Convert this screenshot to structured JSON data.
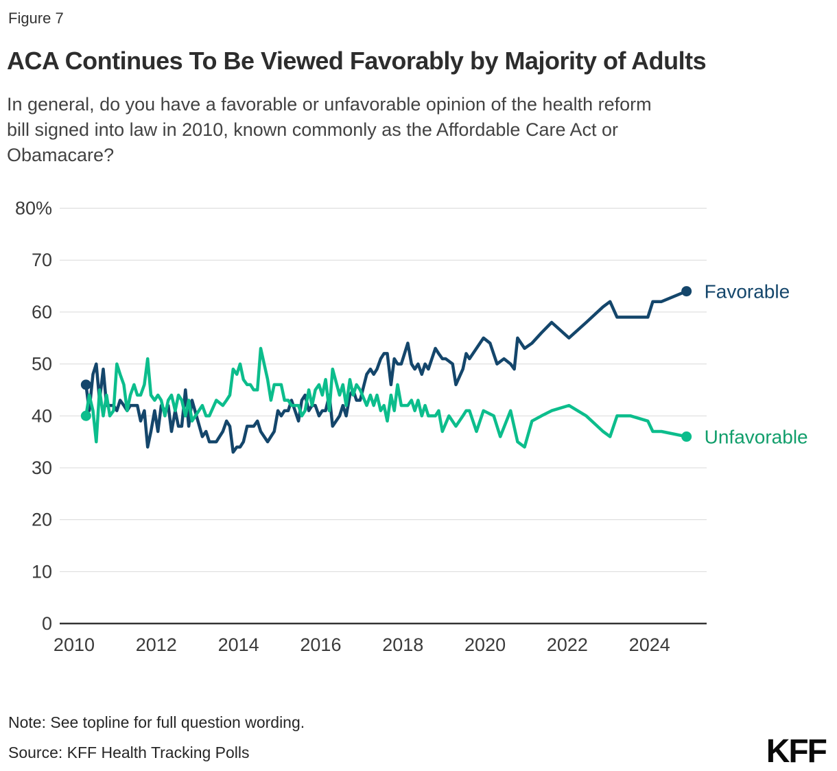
{
  "header": {
    "figure_label": "Figure 7",
    "title": "ACA Continues To Be Viewed Favorably by Majority of Adults",
    "subtitle_lines": [
      "In general, do you have a favorable or unfavorable opinion of the health reform",
      "bill signed into law in 2010, known commonly as the Affordable Care Act or",
      "Obamacare?"
    ]
  },
  "footer": {
    "note": "Note: See topline for full question wording.",
    "source": "Source: KFF Health Tracking Polls",
    "logo": "KFF"
  },
  "style": {
    "grid_color": "#d9d9d9",
    "axis_color": "#333333",
    "tick_label_color": "#3a3a3a",
    "background": "#ffffff"
  },
  "chart_data": {
    "type": "line",
    "title": "ACA favorability over time",
    "xlabel": "",
    "ylabel": "",
    "grid": true,
    "legend_position": "end-of-line-labels",
    "x_range": [
      2009.65,
      2025.39
    ],
    "y_range": [
      0,
      80
    ],
    "x_ticks": [
      2010,
      2012,
      2014,
      2016,
      2018,
      2020,
      2022,
      2024
    ],
    "y_ticks": [
      {
        "value": 0,
        "label": "0"
      },
      {
        "value": 10,
        "label": "10"
      },
      {
        "value": 20,
        "label": "20"
      },
      {
        "value": 30,
        "label": "30"
      },
      {
        "value": 40,
        "label": "40"
      },
      {
        "value": 50,
        "label": "50"
      },
      {
        "value": 60,
        "label": "60"
      },
      {
        "value": 70,
        "label": "70"
      },
      {
        "value": 80,
        "label": "80%"
      }
    ],
    "series": [
      {
        "name": "Favorable",
        "line_color": "#14466b",
        "label_color": "#14466b",
        "start_value": 46,
        "end_value": 64,
        "points": [
          [
            2010.29,
            46
          ],
          [
            2010.37,
            41
          ],
          [
            2010.46,
            48
          ],
          [
            2010.54,
            50
          ],
          [
            2010.62,
            43
          ],
          [
            2010.71,
            49
          ],
          [
            2010.79,
            42
          ],
          [
            2010.87,
            42
          ],
          [
            2010.96,
            42
          ],
          [
            2011.04,
            41
          ],
          [
            2011.12,
            43
          ],
          [
            2011.21,
            42
          ],
          [
            2011.29,
            41
          ],
          [
            2011.37,
            42
          ],
          [
            2011.46,
            42
          ],
          [
            2011.54,
            42
          ],
          [
            2011.62,
            39
          ],
          [
            2011.71,
            41
          ],
          [
            2011.79,
            34
          ],
          [
            2011.87,
            37
          ],
          [
            2011.96,
            41
          ],
          [
            2012.04,
            37
          ],
          [
            2012.12,
            42
          ],
          [
            2012.21,
            41
          ],
          [
            2012.29,
            42
          ],
          [
            2012.37,
            37
          ],
          [
            2012.46,
            41
          ],
          [
            2012.54,
            38
          ],
          [
            2012.62,
            38
          ],
          [
            2012.71,
            45
          ],
          [
            2012.79,
            38
          ],
          [
            2012.87,
            43
          ],
          [
            2013.12,
            36
          ],
          [
            2013.21,
            37
          ],
          [
            2013.29,
            35
          ],
          [
            2013.46,
            35
          ],
          [
            2013.62,
            37
          ],
          [
            2013.71,
            39
          ],
          [
            2013.79,
            38
          ],
          [
            2013.87,
            33
          ],
          [
            2013.96,
            34
          ],
          [
            2014.04,
            34
          ],
          [
            2014.12,
            35
          ],
          [
            2014.21,
            38
          ],
          [
            2014.29,
            38
          ],
          [
            2014.37,
            38
          ],
          [
            2014.46,
            39
          ],
          [
            2014.54,
            37
          ],
          [
            2014.71,
            35
          ],
          [
            2014.79,
            36
          ],
          [
            2014.87,
            37
          ],
          [
            2014.96,
            41
          ],
          [
            2015.04,
            40
          ],
          [
            2015.12,
            41
          ],
          [
            2015.21,
            41
          ],
          [
            2015.29,
            43
          ],
          [
            2015.46,
            39
          ],
          [
            2015.54,
            43
          ],
          [
            2015.62,
            44
          ],
          [
            2015.71,
            41
          ],
          [
            2015.79,
            42
          ],
          [
            2015.87,
            42
          ],
          [
            2015.96,
            40
          ],
          [
            2016.04,
            41
          ],
          [
            2016.12,
            41
          ],
          [
            2016.21,
            44
          ],
          [
            2016.29,
            38
          ],
          [
            2016.46,
            40
          ],
          [
            2016.54,
            42
          ],
          [
            2016.62,
            40
          ],
          [
            2016.71,
            44
          ],
          [
            2016.79,
            45
          ],
          [
            2016.87,
            43
          ],
          [
            2016.96,
            43
          ],
          [
            2017.12,
            48
          ],
          [
            2017.21,
            49
          ],
          [
            2017.29,
            48
          ],
          [
            2017.37,
            49
          ],
          [
            2017.46,
            51
          ],
          [
            2017.54,
            52
          ],
          [
            2017.62,
            52
          ],
          [
            2017.71,
            46
          ],
          [
            2017.79,
            51
          ],
          [
            2017.87,
            50
          ],
          [
            2017.96,
            50
          ],
          [
            2018.12,
            54
          ],
          [
            2018.21,
            50
          ],
          [
            2018.29,
            49
          ],
          [
            2018.37,
            50
          ],
          [
            2018.46,
            48
          ],
          [
            2018.54,
            50
          ],
          [
            2018.62,
            49
          ],
          [
            2018.79,
            53
          ],
          [
            2018.87,
            52
          ],
          [
            2018.96,
            51
          ],
          [
            2019.04,
            51
          ],
          [
            2019.21,
            50
          ],
          [
            2019.29,
            46
          ],
          [
            2019.46,
            49
          ],
          [
            2019.54,
            52
          ],
          [
            2019.62,
            51
          ],
          [
            2019.79,
            53
          ],
          [
            2019.96,
            55
          ],
          [
            2020.12,
            54
          ],
          [
            2020.29,
            50
          ],
          [
            2020.46,
            51
          ],
          [
            2020.62,
            50
          ],
          [
            2020.71,
            49
          ],
          [
            2020.79,
            55
          ],
          [
            2020.96,
            53
          ],
          [
            2021.14,
            54
          ],
          [
            2021.37,
            56
          ],
          [
            2021.62,
            58
          ],
          [
            2022.04,
            55
          ],
          [
            2022.46,
            58
          ],
          [
            2022.87,
            61
          ],
          [
            2023.04,
            62
          ],
          [
            2023.21,
            59
          ],
          [
            2023.54,
            59
          ],
          [
            2023.96,
            59
          ],
          [
            2024.08,
            62
          ],
          [
            2024.29,
            62
          ],
          [
            2024.9,
            64
          ]
        ]
      },
      {
        "name": "Unfavorable",
        "line_color": "#0cbd8c",
        "label_color": "#119e6b",
        "start_value": 40,
        "end_value": 36,
        "points": [
          [
            2010.29,
            40
          ],
          [
            2010.37,
            44
          ],
          [
            2010.46,
            41
          ],
          [
            2010.54,
            35
          ],
          [
            2010.62,
            45
          ],
          [
            2010.71,
            40
          ],
          [
            2010.79,
            44
          ],
          [
            2010.87,
            40
          ],
          [
            2010.96,
            41
          ],
          [
            2011.04,
            50
          ],
          [
            2011.12,
            48
          ],
          [
            2011.21,
            46
          ],
          [
            2011.29,
            41
          ],
          [
            2011.37,
            44
          ],
          [
            2011.46,
            46
          ],
          [
            2011.54,
            44
          ],
          [
            2011.62,
            44
          ],
          [
            2011.71,
            46
          ],
          [
            2011.79,
            51
          ],
          [
            2011.87,
            44
          ],
          [
            2011.96,
            43
          ],
          [
            2012.04,
            44
          ],
          [
            2012.12,
            43
          ],
          [
            2012.21,
            40
          ],
          [
            2012.29,
            43
          ],
          [
            2012.37,
            44
          ],
          [
            2012.46,
            41
          ],
          [
            2012.54,
            44
          ],
          [
            2012.62,
            43
          ],
          [
            2012.71,
            40
          ],
          [
            2012.79,
            43
          ],
          [
            2012.87,
            39
          ],
          [
            2013.12,
            42
          ],
          [
            2013.21,
            40
          ],
          [
            2013.29,
            40
          ],
          [
            2013.46,
            43
          ],
          [
            2013.62,
            42
          ],
          [
            2013.71,
            43
          ],
          [
            2013.79,
            44
          ],
          [
            2013.87,
            49
          ],
          [
            2013.96,
            48
          ],
          [
            2014.04,
            50
          ],
          [
            2014.12,
            47
          ],
          [
            2014.21,
            46
          ],
          [
            2014.29,
            46
          ],
          [
            2014.37,
            45
          ],
          [
            2014.46,
            45
          ],
          [
            2014.54,
            53
          ],
          [
            2014.71,
            47
          ],
          [
            2014.79,
            43
          ],
          [
            2014.87,
            46
          ],
          [
            2014.96,
            46
          ],
          [
            2015.04,
            46
          ],
          [
            2015.12,
            43
          ],
          [
            2015.21,
            43
          ],
          [
            2015.29,
            42
          ],
          [
            2015.46,
            42
          ],
          [
            2015.54,
            40
          ],
          [
            2015.62,
            41
          ],
          [
            2015.71,
            45
          ],
          [
            2015.79,
            42
          ],
          [
            2015.87,
            45
          ],
          [
            2015.96,
            46
          ],
          [
            2016.04,
            44
          ],
          [
            2016.12,
            47
          ],
          [
            2016.21,
            41
          ],
          [
            2016.29,
            49
          ],
          [
            2016.46,
            44
          ],
          [
            2016.54,
            46
          ],
          [
            2016.62,
            42
          ],
          [
            2016.71,
            47
          ],
          [
            2016.79,
            44
          ],
          [
            2016.87,
            46
          ],
          [
            2016.96,
            45
          ],
          [
            2017.12,
            42
          ],
          [
            2017.21,
            44
          ],
          [
            2017.29,
            42
          ],
          [
            2017.37,
            44
          ],
          [
            2017.46,
            41
          ],
          [
            2017.54,
            42
          ],
          [
            2017.62,
            39
          ],
          [
            2017.71,
            44
          ],
          [
            2017.79,
            41
          ],
          [
            2017.87,
            46
          ],
          [
            2017.96,
            42
          ],
          [
            2018.12,
            42
          ],
          [
            2018.21,
            43
          ],
          [
            2018.29,
            41
          ],
          [
            2018.37,
            43
          ],
          [
            2018.46,
            40
          ],
          [
            2018.54,
            42
          ],
          [
            2018.62,
            40
          ],
          [
            2018.79,
            40
          ],
          [
            2018.87,
            41
          ],
          [
            2018.96,
            37
          ],
          [
            2019.12,
            40
          ],
          [
            2019.29,
            38
          ],
          [
            2019.46,
            40
          ],
          [
            2019.54,
            41
          ],
          [
            2019.62,
            41
          ],
          [
            2019.79,
            37
          ],
          [
            2019.96,
            41
          ],
          [
            2020.21,
            40
          ],
          [
            2020.37,
            36
          ],
          [
            2020.62,
            41
          ],
          [
            2020.79,
            35
          ],
          [
            2020.96,
            34
          ],
          [
            2021.14,
            39
          ],
          [
            2021.37,
            40
          ],
          [
            2021.62,
            41
          ],
          [
            2022.04,
            42
          ],
          [
            2022.46,
            40
          ],
          [
            2022.87,
            37
          ],
          [
            2023.04,
            36
          ],
          [
            2023.21,
            40
          ],
          [
            2023.54,
            40
          ],
          [
            2023.96,
            39
          ],
          [
            2024.08,
            37
          ],
          [
            2024.29,
            37
          ],
          [
            2024.9,
            36
          ]
        ]
      }
    ]
  }
}
